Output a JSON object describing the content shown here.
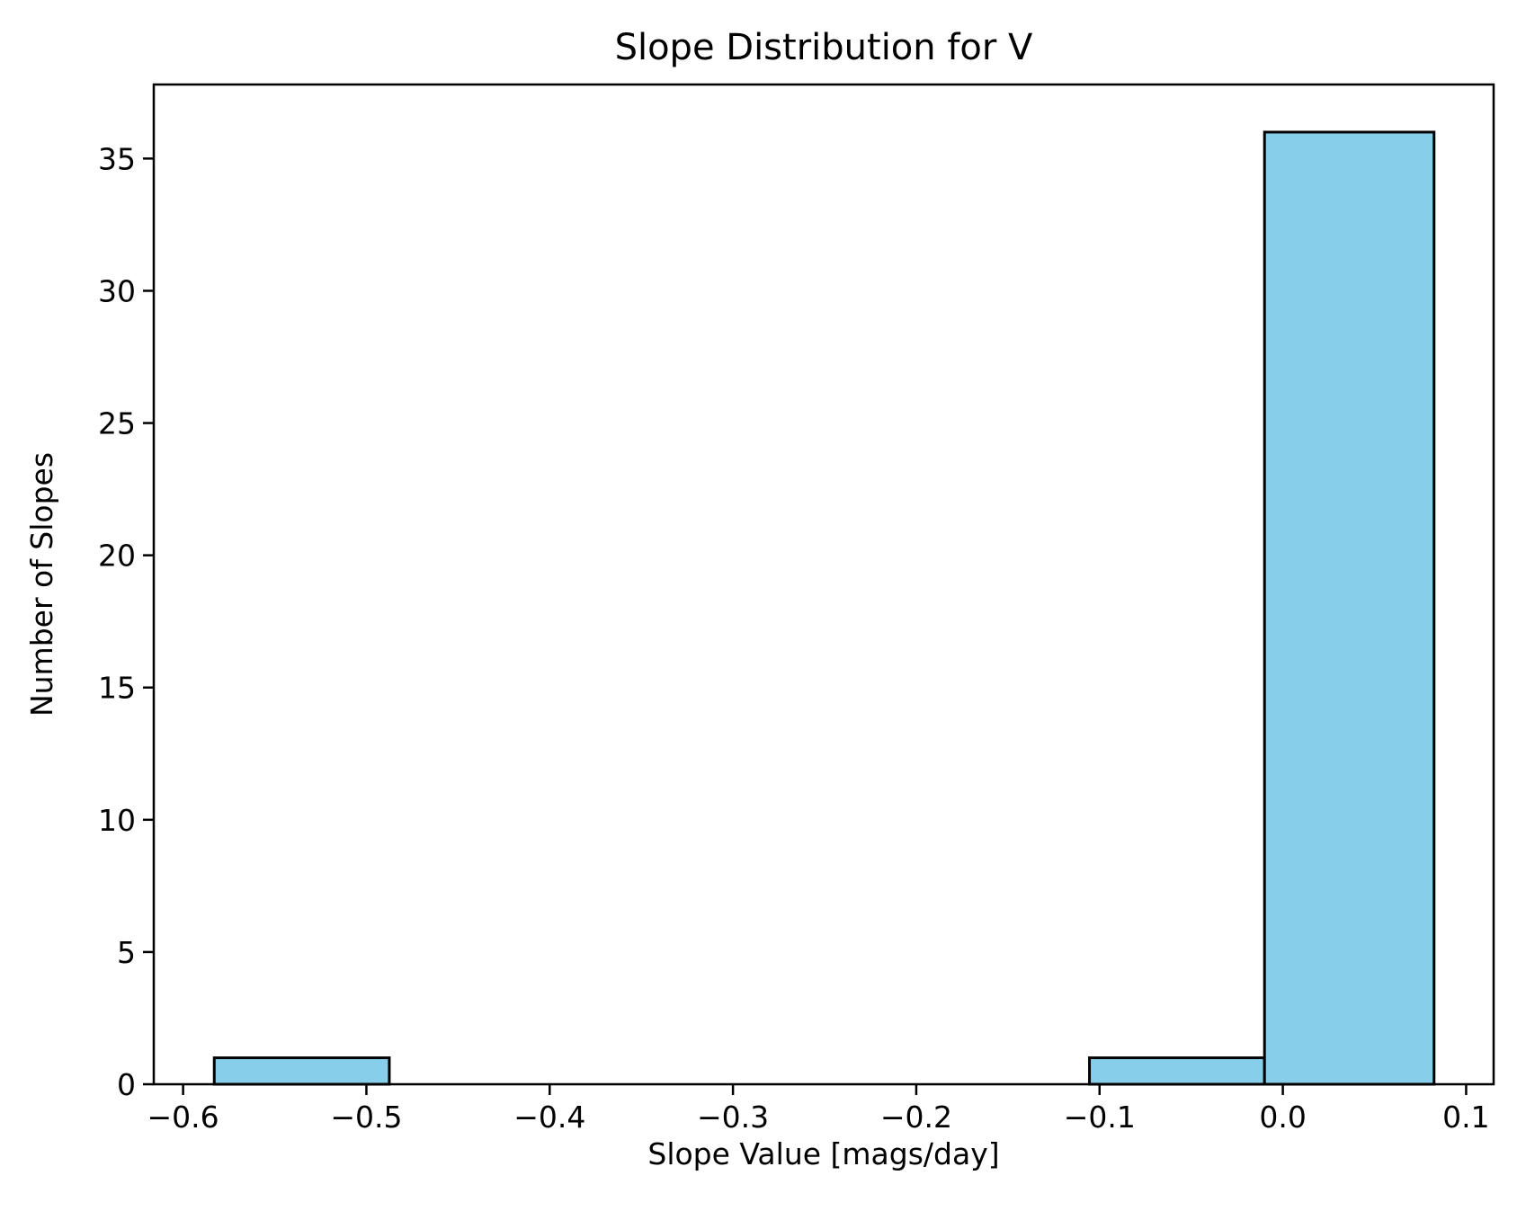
{
  "chart_data": {
    "type": "bar",
    "title": "Slope Distribution for V",
    "xlabel": "Slope Value [mags/day]",
    "ylabel": "Number of Slopes",
    "xlim": [
      -0.616,
      0.115
    ],
    "ylim": [
      0,
      37.8
    ],
    "x_ticks": [
      -0.6,
      -0.5,
      -0.4,
      -0.3,
      -0.2,
      -0.1,
      0.0,
      0.1
    ],
    "x_tick_labels": [
      "−0.6",
      "−0.5",
      "−0.4",
      "−0.3",
      "−0.2",
      "−0.1",
      "0.0",
      "0.1"
    ],
    "y_ticks": [
      0,
      5,
      10,
      15,
      20,
      25,
      30,
      35
    ],
    "y_tick_labels": [
      "0",
      "5",
      "10",
      "15",
      "20",
      "25",
      "30",
      "35"
    ],
    "bin_edges": [
      -0.583,
      -0.4875,
      -0.392,
      -0.2965,
      -0.201,
      -0.1055,
      -0.01,
      0.0825
    ],
    "values": [
      1,
      0,
      0,
      0,
      0,
      1,
      36
    ],
    "bar_color": "#87ceeb",
    "edge_color": "#000000",
    "grid": false,
    "legend": false
  }
}
